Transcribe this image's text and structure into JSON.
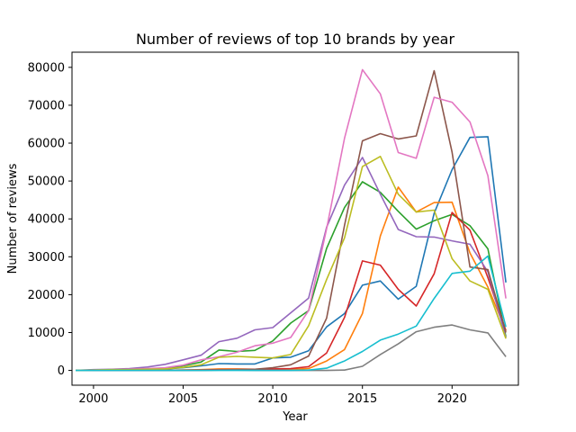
{
  "chart_data": {
    "type": "line",
    "title": "Number of reviews of top 10 brands by year",
    "xlabel": "Year",
    "ylabel": "Number of reviews",
    "xlim": [
      1998.8,
      2023.7
    ],
    "ylim": [
      -3900,
      84000
    ],
    "xticks": [
      2000,
      2005,
      2010,
      2015,
      2020
    ],
    "yticks": [
      0,
      10000,
      20000,
      30000,
      40000,
      50000,
      60000,
      70000,
      80000
    ],
    "grid": false,
    "legend": "none",
    "x": [
      1999,
      2000,
      2001,
      2002,
      2003,
      2004,
      2005,
      2006,
      2007,
      2008,
      2009,
      2010,
      2011,
      2012,
      2013,
      2014,
      2015,
      2016,
      2017,
      2018,
      2019,
      2020,
      2021,
      2022,
      2023
    ],
    "series": [
      {
        "color": "#1f77b4",
        "values": [
          0,
          100,
          150,
          200,
          300,
          400,
          700,
          1200,
          1800,
          1700,
          1700,
          3300,
          3500,
          5200,
          11500,
          15000,
          22500,
          23600,
          18800,
          22200,
          41500,
          53000,
          61500,
          61700,
          23200
        ]
      },
      {
        "color": "#ff7f0e",
        "values": [
          0,
          0,
          0,
          0,
          0,
          50,
          100,
          200,
          400,
          400,
          300,
          300,
          300,
          500,
          2500,
          5500,
          15000,
          35500,
          48400,
          41800,
          44300,
          44400,
          31000,
          22000,
          10500
        ]
      },
      {
        "color": "#2ca02c",
        "values": [
          0,
          100,
          200,
          300,
          400,
          600,
          1200,
          2200,
          5400,
          5000,
          5300,
          7800,
          12500,
          15800,
          32200,
          43000,
          49800,
          47000,
          42000,
          37300,
          39500,
          41200,
          38200,
          32100,
          8900
        ]
      },
      {
        "color": "#d62728",
        "values": [
          0,
          0,
          0,
          0,
          0,
          50,
          100,
          150,
          200,
          250,
          300,
          400,
          500,
          1000,
          4600,
          14000,
          28900,
          27800,
          21400,
          17000,
          25500,
          41700,
          37000,
          24500,
          10500
        ]
      },
      {
        "color": "#9467bd",
        "values": [
          0,
          200,
          300,
          500,
          900,
          1600,
          2800,
          4000,
          7600,
          8500,
          10700,
          11300,
          15200,
          19100,
          37800,
          48900,
          56200,
          46500,
          37200,
          35300,
          35200,
          34200,
          33300,
          26000,
          8600
        ]
      },
      {
        "color": "#8c564b",
        "values": [
          0,
          0,
          0,
          0,
          0,
          0,
          0,
          50,
          100,
          200,
          300,
          700,
          1500,
          3800,
          13800,
          38300,
          60600,
          62500,
          61100,
          61900,
          79100,
          57600,
          27300,
          26600,
          10000
        ]
      },
      {
        "color": "#e377c2",
        "values": [
          0,
          100,
          200,
          300,
          500,
          700,
          1400,
          2800,
          3600,
          4800,
          6500,
          7200,
          8700,
          15800,
          37400,
          61300,
          79400,
          73000,
          57500,
          56000,
          72100,
          70800,
          65600,
          51400,
          19000
        ]
      },
      {
        "color": "#7f7f7f",
        "values": [
          0,
          0,
          0,
          0,
          0,
          0,
          0,
          0,
          100,
          100,
          0,
          0,
          0,
          0,
          0,
          100,
          1100,
          4200,
          7000,
          10200,
          11400,
          12000,
          10700,
          9900,
          3600
        ]
      },
      {
        "color": "#bcbd22",
        "values": [
          0,
          100,
          200,
          200,
          300,
          400,
          800,
          1500,
          3500,
          3700,
          3500,
          3300,
          4200,
          11800,
          24000,
          35000,
          53800,
          56500,
          46500,
          41800,
          42300,
          29500,
          23600,
          21400,
          8400
        ]
      },
      {
        "color": "#17becf",
        "values": [
          0,
          0,
          0,
          0,
          0,
          0,
          0,
          0,
          0,
          0,
          0,
          0,
          0,
          100,
          600,
          2500,
          5000,
          8000,
          9600,
          11700,
          19000,
          25600,
          26200,
          30200,
          11500
        ]
      }
    ]
  }
}
